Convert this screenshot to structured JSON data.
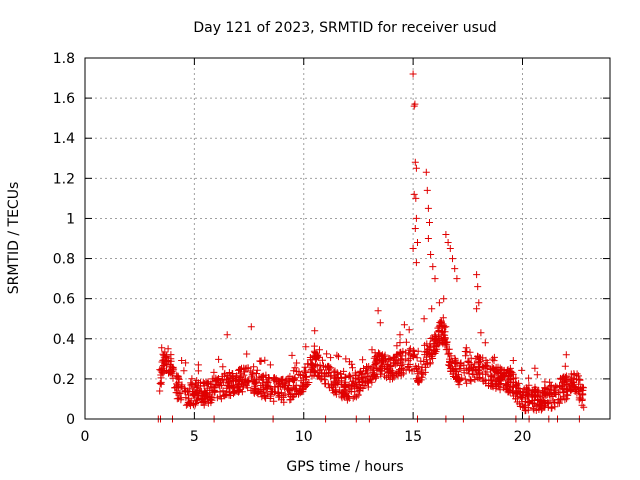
{
  "chart_data": {
    "type": "scatter",
    "title": "Day 121 of 2023, SRMTID for receiver usud",
    "xlabel": "GPS time / hours",
    "ylabel": "SRMTID / TECUs",
    "xlim": [
      0,
      24
    ],
    "ylim": [
      0,
      1.8
    ],
    "xticks": [
      0,
      5,
      10,
      15,
      20
    ],
    "xtick_labels": [
      "0",
      "5",
      "10",
      "15",
      "20"
    ],
    "yticks": [
      0,
      0.2,
      0.4,
      0.6,
      0.8,
      1.0,
      1.2,
      1.4,
      1.6,
      1.8
    ],
    "ytick_labels": [
      "0",
      "0.2",
      "0.4",
      "0.6",
      "0.8",
      "1",
      "1.2",
      "1.4",
      "1.6",
      "1.8"
    ],
    "grid": true,
    "marker": "+",
    "color": "#e00000",
    "series": [
      {
        "name": "SRMTID",
        "profile": [
          [
            3.4,
            0.18
          ],
          [
            3.6,
            0.3
          ],
          [
            3.8,
            0.28
          ],
          [
            4.0,
            0.22
          ],
          [
            4.2,
            0.16
          ],
          [
            4.5,
            0.13
          ],
          [
            5.0,
            0.12
          ],
          [
            5.5,
            0.13
          ],
          [
            6.0,
            0.15
          ],
          [
            6.5,
            0.17
          ],
          [
            7.0,
            0.19
          ],
          [
            7.5,
            0.2
          ],
          [
            8.0,
            0.17
          ],
          [
            8.5,
            0.15
          ],
          [
            9.0,
            0.14
          ],
          [
            9.5,
            0.16
          ],
          [
            10.0,
            0.2
          ],
          [
            10.5,
            0.28
          ],
          [
            11.0,
            0.22
          ],
          [
            11.5,
            0.18
          ],
          [
            12.0,
            0.15
          ],
          [
            12.5,
            0.17
          ],
          [
            13.0,
            0.22
          ],
          [
            13.5,
            0.28
          ],
          [
            14.0,
            0.25
          ],
          [
            14.5,
            0.28
          ],
          [
            15.0,
            0.3
          ],
          [
            15.3,
            0.22
          ],
          [
            15.7,
            0.32
          ],
          [
            16.0,
            0.38
          ],
          [
            16.3,
            0.45
          ],
          [
            16.7,
            0.3
          ],
          [
            17.0,
            0.22
          ],
          [
            17.5,
            0.24
          ],
          [
            18.0,
            0.26
          ],
          [
            18.5,
            0.22
          ],
          [
            19.0,
            0.2
          ],
          [
            19.5,
            0.18
          ],
          [
            20.0,
            0.1
          ],
          [
            20.5,
            0.09
          ],
          [
            21.0,
            0.1
          ],
          [
            21.5,
            0.12
          ],
          [
            22.0,
            0.16
          ],
          [
            22.5,
            0.18
          ],
          [
            22.8,
            0.1
          ]
        ],
        "spread": 0.06,
        "points_per_hour": 75,
        "peaks": [
          [
            15.0,
            1.72
          ],
          [
            15.05,
            1.56
          ],
          [
            15.08,
            1.57
          ],
          [
            15.1,
            1.28
          ],
          [
            15.15,
            1.25
          ],
          [
            15.05,
            1.12
          ],
          [
            15.12,
            1.1
          ],
          [
            15.15,
            1.0
          ],
          [
            15.1,
            0.95
          ],
          [
            15.2,
            0.88
          ],
          [
            15.0,
            0.85
          ],
          [
            15.15,
            0.78
          ],
          [
            15.6,
            1.23
          ],
          [
            15.65,
            1.14
          ],
          [
            15.7,
            1.05
          ],
          [
            15.75,
            0.98
          ],
          [
            15.7,
            0.9
          ],
          [
            15.8,
            0.82
          ],
          [
            15.9,
            0.76
          ],
          [
            16.0,
            0.7
          ],
          [
            16.5,
            0.92
          ],
          [
            16.6,
            0.88
          ],
          [
            16.7,
            0.85
          ],
          [
            16.8,
            0.8
          ],
          [
            16.9,
            0.75
          ],
          [
            17.0,
            0.7
          ],
          [
            17.9,
            0.72
          ],
          [
            17.95,
            0.66
          ],
          [
            18.0,
            0.58
          ],
          [
            17.9,
            0.55
          ],
          [
            16.4,
            0.6
          ],
          [
            16.2,
            0.58
          ],
          [
            15.85,
            0.55
          ],
          [
            15.5,
            0.5
          ],
          [
            13.4,
            0.54
          ],
          [
            13.5,
            0.48
          ],
          [
            14.6,
            0.47
          ],
          [
            14.4,
            0.42
          ],
          [
            10.5,
            0.44
          ],
          [
            7.6,
            0.46
          ],
          [
            6.5,
            0.42
          ],
          [
            18.1,
            0.43
          ],
          [
            18.3,
            0.38
          ],
          [
            3.8,
            0.35
          ],
          [
            22.0,
            0.32
          ]
        ],
        "zeros": [
          3.35,
          3.45,
          4.0,
          5.9,
          8.6,
          11.0,
          12.4,
          13.0,
          15.2,
          16.5,
          17.3,
          19.7,
          20.3,
          21.2,
          21.6,
          22.6
        ]
      }
    ]
  }
}
